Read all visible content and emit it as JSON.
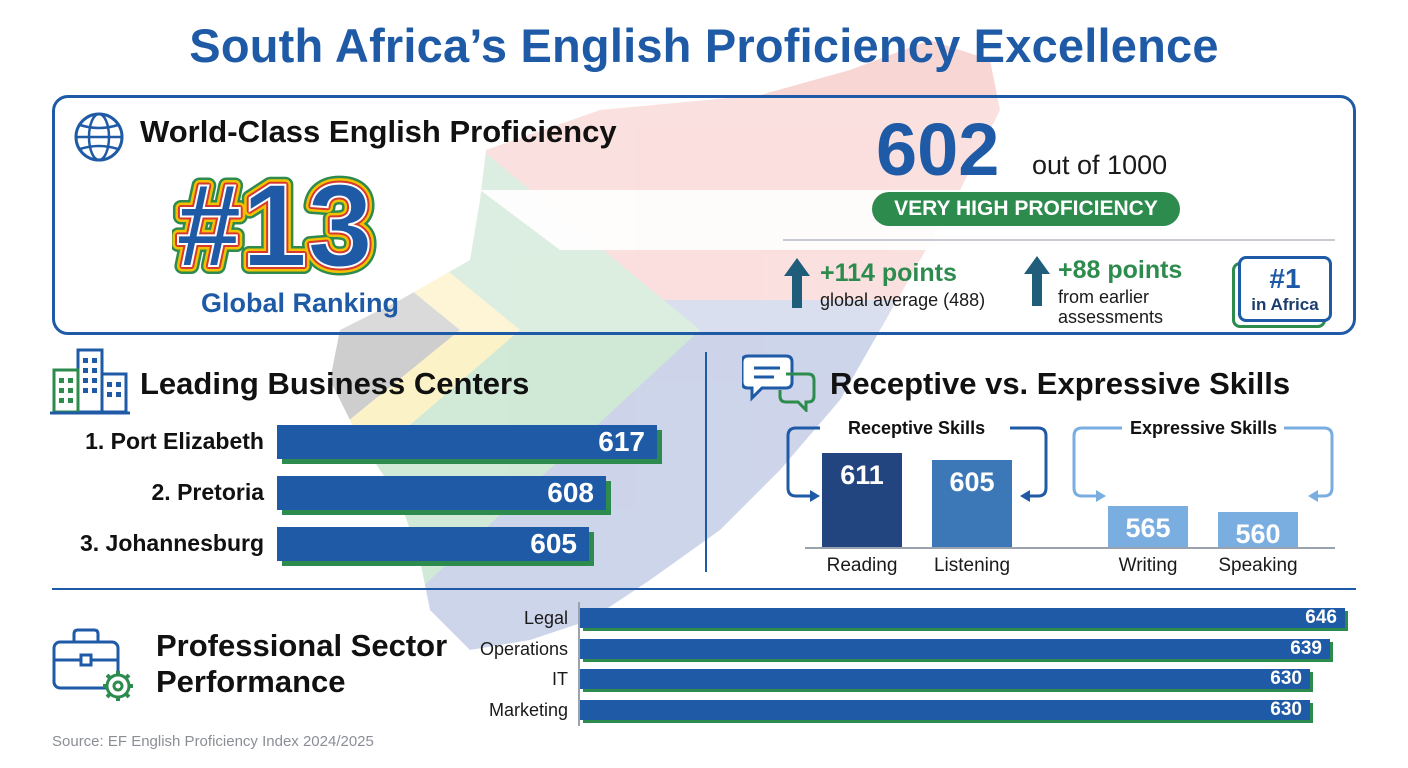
{
  "title": "South Africa’s English Proficiency Excellence",
  "ranking": {
    "heading": "World-Class English Proficiency",
    "rank": "#13",
    "rank_label": "Global Ranking"
  },
  "score": {
    "value": "602",
    "out_of": "out of 1000",
    "level": "VERY HIGH PROFICIENCY",
    "gain_global": "+114 points",
    "gain_global_desc": "global average (488)",
    "gain_earlier": "+88 points",
    "gain_earlier_desc_1": "from earlier",
    "gain_earlier_desc_2": "assessments",
    "africa_rank": "#1",
    "africa_label": "in Africa"
  },
  "business": {
    "heading": "Leading Business Centers"
  },
  "skills": {
    "heading": "Receptive vs. Expressive Skills",
    "receptive_label": "Receptive Skills",
    "expressive_label": "Expressive Skills"
  },
  "sectors": {
    "heading_line1": "Professional Sector",
    "heading_line2": "Performance"
  },
  "source": "Source: EF English Proficiency Index 2024/2025",
  "colors": {
    "primary_blue": "#1f5aa6",
    "accent_green": "#2e8b4e",
    "reading_bar": "#23457f",
    "listening_bar": "#3c78b8",
    "expressive_bar": "#7aaee0"
  },
  "icons": [
    "globe-icon",
    "buildings-icon",
    "chat-bubbles-icon",
    "briefcase-gear-icon",
    "up-arrow-icon"
  ],
  "chart_data": [
    {
      "type": "bar",
      "orientation": "horizontal",
      "title": "Leading Business Centers",
      "categories": [
        "1. Port Elizabeth",
        "2. Pretoria",
        "3. Johannesburg"
      ],
      "values": [
        617,
        608,
        605
      ]
    },
    {
      "type": "bar",
      "title": "Receptive vs. Expressive Skills",
      "groups": [
        "Receptive Skills",
        "Receptive Skills",
        "Expressive Skills",
        "Expressive Skills"
      ],
      "categories": [
        "Reading",
        "Listening",
        "Writing",
        "Speaking"
      ],
      "values": [
        611,
        605,
        565,
        560
      ]
    },
    {
      "type": "bar",
      "orientation": "horizontal",
      "title": "Professional Sector Performance",
      "categories": [
        "Legal",
        "Operations",
        "IT",
        "Marketing"
      ],
      "values": [
        646,
        639,
        630,
        630
      ]
    }
  ]
}
